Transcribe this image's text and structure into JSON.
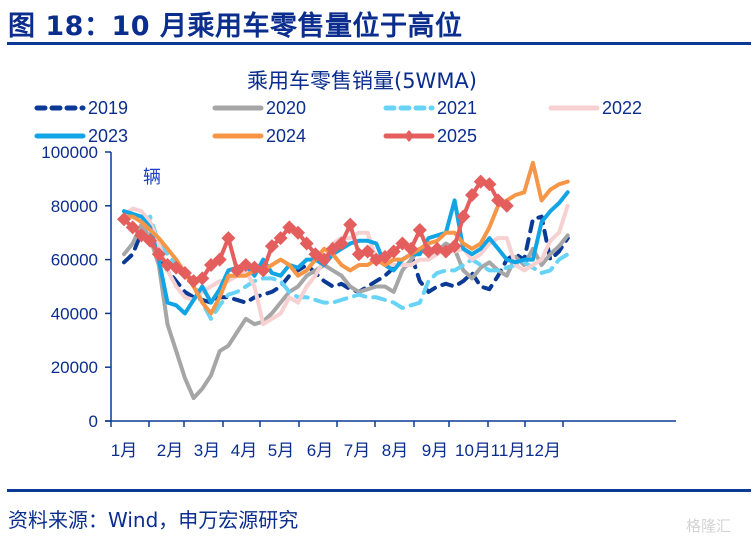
{
  "header": {
    "figure_title": "图 18：10 月乘用车零售量位于高位"
  },
  "footer": {
    "source": "资料来源：Wind，申万宏源研究",
    "watermark": "格隆汇"
  },
  "chart_data": {
    "type": "line",
    "title": "乘用车零售销量(5WMA)",
    "unit_label": "辆",
    "xlabel": "",
    "ylabel": "",
    "ylim": [
      0,
      100000
    ],
    "yticks": [
      0,
      20000,
      40000,
      60000,
      80000,
      100000
    ],
    "ytick_labels": [
      "0",
      "20000",
      "40000",
      "60000",
      "80000",
      "100000"
    ],
    "xtick_labels": [
      "1月",
      "2月",
      "3月",
      "4月",
      "5月",
      "6月",
      "7月",
      "8月",
      "9月",
      "10月",
      "11月",
      "12月"
    ],
    "x_unit": "week",
    "x_range": [
      1,
      52
    ],
    "grid": false,
    "legend_position": "top",
    "series": [
      {
        "name": "2019",
        "color": "#0b3a96",
        "dash": "dashed",
        "values": [
          59000,
          62000,
          70000,
          66000,
          62000,
          56000,
          52000,
          48000,
          46000,
          45000,
          44000,
          46000,
          46000,
          45000,
          44000,
          46000,
          47000,
          48000,
          50000,
          54000,
          56000,
          58000,
          55000,
          52000,
          50000,
          51000,
          49000,
          48000,
          50000,
          52000,
          54000,
          57000,
          60000,
          62000,
          52000,
          48000,
          50000,
          51000,
          50000,
          52000,
          55000,
          50000,
          49000,
          54000,
          60000,
          62000,
          60000,
          75000,
          76000,
          60000,
          63000,
          68000
        ]
      },
      {
        "name": "2020",
        "color": "#a6a6a6",
        "dash": "solid",
        "values": [
          62000,
          66000,
          73000,
          68000,
          58000,
          36000,
          26000,
          16000,
          8500,
          12000,
          17000,
          26000,
          28000,
          33000,
          38000,
          36000,
          37000,
          40000,
          44000,
          48000,
          50000,
          54000,
          56000,
          58000,
          56000,
          54000,
          50000,
          48000,
          49000,
          50000,
          50000,
          48000,
          56000,
          60000,
          64000,
          62000,
          63000,
          66000,
          64000,
          56000,
          53000,
          57000,
          59000,
          56000,
          54000,
          61000,
          58000,
          64000,
          58000,
          62000,
          65000,
          69000
        ]
      },
      {
        "name": "2021",
        "color": "#66d3f7",
        "dash": "dashed",
        "values": [
          78000,
          76000,
          74000,
          76000,
          66000,
          62000,
          58000,
          55000,
          52000,
          44000,
          38000,
          43000,
          47000,
          48000,
          50000,
          52000,
          53000,
          53000,
          52000,
          48000,
          46000,
          46000,
          45000,
          44000,
          44000,
          45000,
          46000,
          47000,
          46000,
          46000,
          45000,
          44000,
          42000,
          43000,
          44000,
          52000,
          55000,
          56000,
          56000,
          58000,
          60000,
          58000,
          56000,
          56000,
          57000,
          58000,
          59000,
          57000,
          55000,
          56000,
          60000,
          62000
        ]
      },
      {
        "name": "2022",
        "color": "#f7d1d1",
        "dash": "solid",
        "values": [
          76000,
          79000,
          78000,
          74000,
          66000,
          56000,
          50000,
          46000,
          45000,
          48000,
          50000,
          52000,
          52000,
          54000,
          56000,
          50000,
          36000,
          38000,
          40000,
          46000,
          44000,
          50000,
          54000,
          60000,
          66000,
          68000,
          68000,
          70000,
          70000,
          60000,
          58000,
          58000,
          58000,
          58000,
          60000,
          60000,
          62000,
          64000,
          63000,
          64000,
          60000,
          62000,
          66000,
          68000,
          68000,
          58000,
          56000,
          58000,
          60000,
          67000,
          70000,
          80000
        ]
      },
      {
        "name": "2023",
        "color": "#12a5e6",
        "dash": "solid",
        "values": [
          78000,
          77000,
          76000,
          72000,
          60000,
          44000,
          43000,
          40000,
          45000,
          50000,
          44000,
          49000,
          56000,
          57000,
          58000,
          54000,
          60000,
          55000,
          54000,
          58000,
          57000,
          60000,
          60000,
          58000,
          62000,
          64000,
          66000,
          67000,
          67000,
          66000,
          58000,
          56000,
          60000,
          62000,
          62000,
          68000,
          69000,
          70000,
          82000,
          64000,
          62000,
          64000,
          68000,
          64000,
          60000,
          59000,
          60000,
          60000,
          74000,
          78000,
          81000,
          85000
        ]
      },
      {
        "name": "2024",
        "color": "#f79646",
        "dash": "solid",
        "values": [
          76000,
          76000,
          74000,
          71000,
          68000,
          64000,
          60000,
          55000,
          50000,
          44000,
          40000,
          46000,
          54000,
          54000,
          54000,
          56000,
          56000,
          58000,
          60000,
          58000,
          54000,
          56000,
          60000,
          64000,
          62000,
          58000,
          56000,
          58000,
          58000,
          60000,
          58000,
          60000,
          60000,
          62000,
          64000,
          66000,
          67000,
          70000,
          70000,
          66000,
          64000,
          66000,
          72000,
          80000,
          82000,
          84000,
          85000,
          96000,
          82000,
          86000,
          88000,
          89000
        ]
      },
      {
        "name": "2025",
        "color": "#e45e5e",
        "dash": "solid",
        "marker": "diamond",
        "values": [
          75000,
          72000,
          69000,
          67000,
          62000,
          58000,
          57000,
          55000,
          52000,
          53000,
          58000,
          60000,
          68000,
          56000,
          58000,
          57000,
          56000,
          65000,
          68000,
          72000,
          70000,
          66000,
          62000,
          60000,
          64000,
          66000,
          73000,
          62000,
          63000,
          60000,
          61000,
          63000,
          66000,
          64000,
          71000,
          63000,
          64000,
          63000,
          65000,
          76000,
          84000,
          89000,
          88000,
          82000,
          80000
        ]
      }
    ]
  }
}
